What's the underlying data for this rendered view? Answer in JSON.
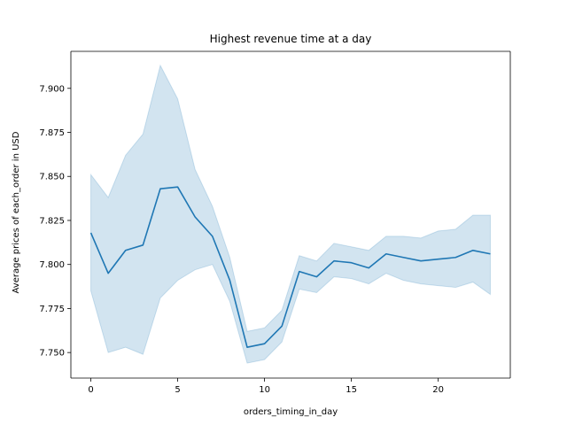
{
  "chart_data": {
    "type": "line",
    "title": "Highest revenue time at a day",
    "xlabel": "orders_timing_in_day",
    "ylabel": "Average prices of each_order in USD",
    "xlim": [
      -1.15,
      24.15
    ],
    "ylim": [
      7.7355,
      7.921
    ],
    "xticks": [
      0,
      5,
      10,
      15,
      20
    ],
    "xtick_labels": [
      "0",
      "5",
      "10",
      "15",
      "20"
    ],
    "yticks": [
      7.75,
      7.775,
      7.8,
      7.825,
      7.85,
      7.875,
      7.9
    ],
    "ytick_labels": [
      "7.750",
      "7.775",
      "7.800",
      "7.825",
      "7.850",
      "7.875",
      "7.900"
    ],
    "grid": false,
    "line_color": "#1f77b4",
    "band_color": "#1f77b4",
    "series": [
      {
        "x": [
          0,
          1,
          2,
          3,
          4,
          5,
          6,
          7,
          8,
          9,
          10,
          11,
          12,
          13,
          14,
          15,
          16,
          17,
          18,
          19,
          20,
          21,
          22,
          23
        ],
        "values": [
          7.818,
          7.795,
          7.808,
          7.811,
          7.843,
          7.844,
          7.827,
          7.816,
          7.791,
          7.753,
          7.755,
          7.765,
          7.796,
          7.793,
          7.802,
          7.801,
          7.798,
          7.806,
          7.804,
          7.802,
          7.803,
          7.804,
          7.808,
          7.806
        ],
        "ci_upper": [
          7.851,
          7.838,
          7.862,
          7.874,
          7.913,
          7.894,
          7.854,
          7.833,
          7.804,
          7.762,
          7.764,
          7.774,
          7.805,
          7.802,
          7.812,
          7.81,
          7.808,
          7.816,
          7.816,
          7.815,
          7.819,
          7.82,
          7.828,
          7.828
        ],
        "ci_lower": [
          7.785,
          7.75,
          7.753,
          7.749,
          7.781,
          7.791,
          7.797,
          7.8,
          7.779,
          7.744,
          7.746,
          7.756,
          7.786,
          7.784,
          7.793,
          7.792,
          7.789,
          7.795,
          7.791,
          7.789,
          7.788,
          7.787,
          7.79,
          7.783
        ]
      }
    ]
  }
}
